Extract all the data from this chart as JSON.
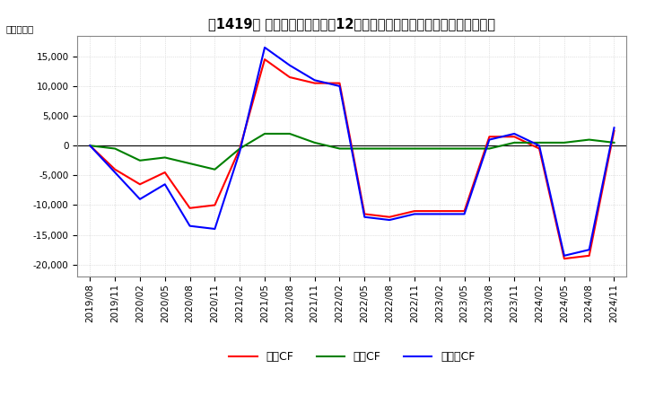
{
  "title_prefix": "［1419］ ",
  "title_main": "キャッシュフローの12か月移動合計の対前年同期増減額の推移",
  "ylabel": "（百万円）",
  "legend": [
    "営業CF",
    "投資CF",
    "フリーCF"
  ],
  "colors": [
    "#ff0000",
    "#008000",
    "#0000ff"
  ],
  "ylim": [
    -22000,
    18500
  ],
  "yticks": [
    -20000,
    -15000,
    -10000,
    -5000,
    0,
    5000,
    10000,
    15000
  ],
  "dates": [
    "2019/08",
    "2019/11",
    "2020/02",
    "2020/05",
    "2020/08",
    "2020/11",
    "2021/02",
    "2021/05",
    "2021/08",
    "2021/11",
    "2022/02",
    "2022/05",
    "2022/08",
    "2022/11",
    "2023/02",
    "2023/05",
    "2023/08",
    "2023/11",
    "2024/02",
    "2024/05",
    "2024/08",
    "2024/11"
  ],
  "eigyo_cf": [
    0,
    -4000,
    -6500,
    -4500,
    -10500,
    -10000,
    -500,
    14500,
    11500,
    10500,
    10500,
    -11500,
    -12000,
    -11000,
    -11000,
    -11000,
    1500,
    1500,
    -500,
    -19000,
    -18500,
    2500
  ],
  "toshi_cf": [
    0,
    -500,
    -2500,
    -2000,
    -3000,
    -4000,
    -500,
    2000,
    2000,
    500,
    -500,
    -500,
    -500,
    -500,
    -500,
    -500,
    -500,
    500,
    500,
    500,
    1000,
    500
  ],
  "free_cf": [
    0,
    -4500,
    -9000,
    -6500,
    -13500,
    -14000,
    -1000,
    16500,
    13500,
    11000,
    10000,
    -12000,
    -12500,
    -11500,
    -11500,
    -11500,
    1000,
    2000,
    0,
    -18500,
    -17500,
    3000
  ],
  "background_color": "#ffffff",
  "grid_color": "#c8c8c8",
  "title_fontsize": 10.5,
  "tick_fontsize": 7.5,
  "legend_fontsize": 9
}
